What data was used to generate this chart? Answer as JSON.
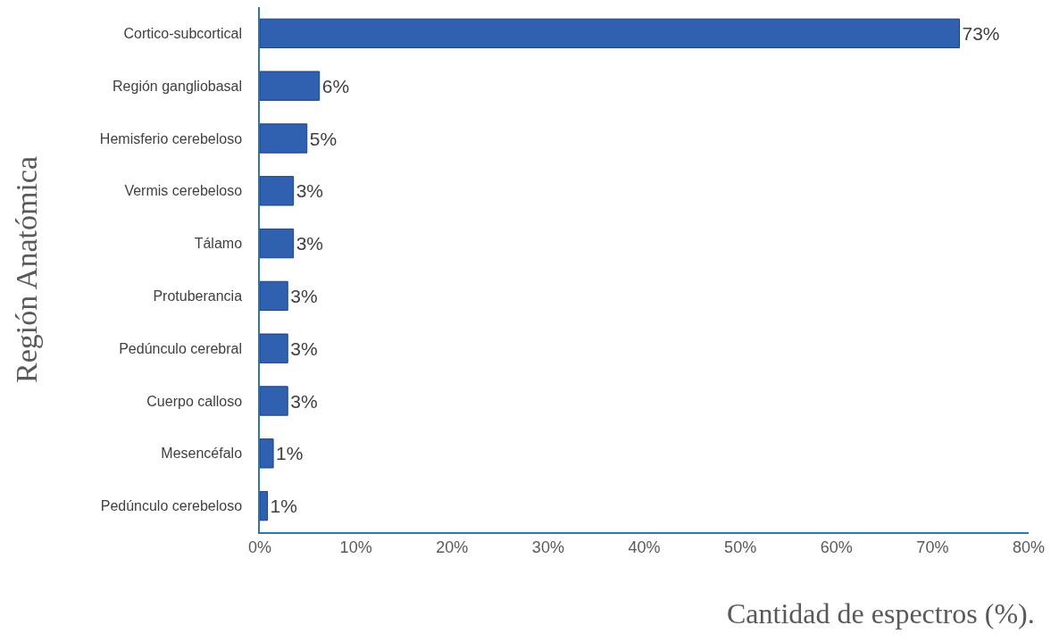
{
  "chart_data": {
    "type": "bar",
    "orientation": "horizontal",
    "categories": [
      "Cortico-subcortical",
      "Región gangliobasal",
      "Hemisferio cerebeloso",
      "Vermis cerebeloso",
      "Tálamo",
      "Protuberancia",
      "Pedúnculo cerebral",
      "Cuerpo calloso",
      "Mesencéfalo",
      "Pedúnculo cerebeloso"
    ],
    "values": [
      72.8,
      6.2,
      4.9,
      3.5,
      3.5,
      2.9,
      2.9,
      2.9,
      1.4,
      0.8
    ],
    "value_labels": [
      "73%",
      "6%",
      "5%",
      "3%",
      "3%",
      "3%",
      "3%",
      "3%",
      "1%",
      "1%"
    ],
    "color": "#3060b0",
    "xlim": [
      0,
      80
    ],
    "xticks": [
      {
        "value": 0,
        "label": "0%"
      },
      {
        "value": 10,
        "label": "10%"
      },
      {
        "value": 20,
        "label": "20%"
      },
      {
        "value": 30,
        "label": "30%"
      },
      {
        "value": 40,
        "label": "40%"
      },
      {
        "value": 50,
        "label": "50%"
      },
      {
        "value": 60,
        "label": "60%"
      },
      {
        "value": 70,
        "label": "70%"
      },
      {
        "value": 80,
        "label": "80%"
      }
    ],
    "xlabel": "Cantidad de espectros (%).",
    "ylabel": "Región Anatómica",
    "legend": false
  }
}
